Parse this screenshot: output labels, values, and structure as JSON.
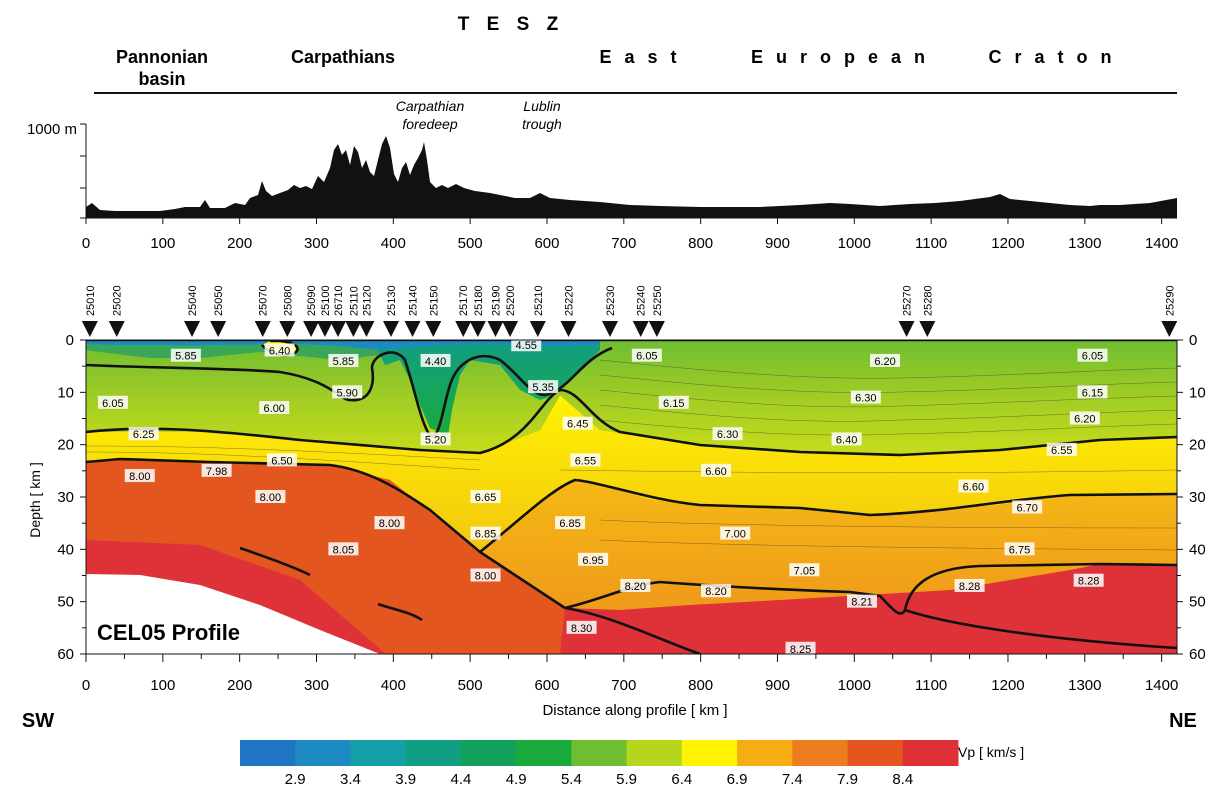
{
  "header": {
    "tesz": "T E S Z",
    "regions": [
      {
        "label": "Pannonian",
        "label2": "basin"
      },
      {
        "label": "Carpathians"
      },
      {
        "label": "E a s t"
      },
      {
        "label": "E u r o p e a n"
      },
      {
        "label": "C r a t o n"
      }
    ],
    "sub_features": [
      {
        "label": "Carpathian",
        "label2": "foredeep"
      },
      {
        "label": "Lublin",
        "label2": "trough"
      }
    ]
  },
  "topography": {
    "elevation_label": "1000 m",
    "x_ticks": [
      "0",
      "100",
      "200",
      "300",
      "400",
      "500",
      "600",
      "700",
      "800",
      "900",
      "1000",
      "1100",
      "1200",
      "1300",
      "1400"
    ]
  },
  "section": {
    "profile_name": "CEL05 Profile",
    "y_axis_label": "Depth [ km ]",
    "x_axis_label": "Distance along profile  [ km ]",
    "left_end": "SW",
    "right_end": "NE",
    "depth_ticks": [
      "0",
      "10",
      "20",
      "30",
      "40",
      "50",
      "60"
    ],
    "x_ticks": [
      "0",
      "100",
      "200",
      "300",
      "400",
      "500",
      "600",
      "700",
      "800",
      "900",
      "1000",
      "1100",
      "1200",
      "1300",
      "1400"
    ],
    "stations": [
      {
        "id": "25010",
        "km": 5
      },
      {
        "id": "25020",
        "km": 40
      },
      {
        "id": "25040",
        "km": 138
      },
      {
        "id": "25050",
        "km": 172
      },
      {
        "id": "25070",
        "km": 230
      },
      {
        "id": "25080",
        "km": 262
      },
      {
        "id": "25090",
        "km": 293
      },
      {
        "id": "25100",
        "km": 311
      },
      {
        "id": "26710",
        "km": 328
      },
      {
        "id": "25110",
        "km": 348
      },
      {
        "id": "25120",
        "km": 365
      },
      {
        "id": "25130",
        "km": 397
      },
      {
        "id": "25140",
        "km": 425
      },
      {
        "id": "25150",
        "km": 452
      },
      {
        "id": "25170",
        "km": 491
      },
      {
        "id": "25180",
        "km": 510
      },
      {
        "id": "25190",
        "km": 533
      },
      {
        "id": "25200",
        "km": 552
      },
      {
        "id": "25210",
        "km": 588
      },
      {
        "id": "25220",
        "km": 628
      },
      {
        "id": "25230",
        "km": 682
      },
      {
        "id": "25240",
        "km": 722
      },
      {
        "id": "25250",
        "km": 743
      },
      {
        "id": "25270",
        "km": 1068
      },
      {
        "id": "25280",
        "km": 1095
      },
      {
        "id": "25290",
        "km": 1410
      }
    ],
    "velocity_labels": [
      {
        "v": "5.85",
        "km": 130,
        "depth": 3
      },
      {
        "v": "6.40",
        "km": 252,
        "depth": 2
      },
      {
        "v": "5.85",
        "km": 335,
        "depth": 4
      },
      {
        "v": "4.40",
        "km": 455,
        "depth": 4
      },
      {
        "v": "4.55",
        "km": 573,
        "depth": 1
      },
      {
        "v": "6.05",
        "km": 730,
        "depth": 3
      },
      {
        "v": "6.20",
        "km": 1040,
        "depth": 4
      },
      {
        "v": "6.05",
        "km": 1310,
        "depth": 3
      },
      {
        "v": "5.90",
        "km": 340,
        "depth": 10
      },
      {
        "v": "5.35",
        "km": 595,
        "depth": 9
      },
      {
        "v": "6.05",
        "km": 35,
        "depth": 12
      },
      {
        "v": "6.00",
        "km": 245,
        "depth": 13
      },
      {
        "v": "6.15",
        "km": 765,
        "depth": 12
      },
      {
        "v": "6.30",
        "km": 1015,
        "depth": 11
      },
      {
        "v": "6.15",
        "km": 1310,
        "depth": 10
      },
      {
        "v": "5.20",
        "km": 455,
        "depth": 19
      },
      {
        "v": "6.45",
        "km": 640,
        "depth": 16
      },
      {
        "v": "6.20",
        "km": 1300,
        "depth": 15
      },
      {
        "v": "6.30",
        "km": 835,
        "depth": 18
      },
      {
        "v": "6.40",
        "km": 990,
        "depth": 19
      },
      {
        "v": "6.25",
        "km": 75,
        "depth": 18
      },
      {
        "v": "6.55",
        "km": 1270,
        "depth": 21
      },
      {
        "v": "6.50",
        "km": 255,
        "depth": 23
      },
      {
        "v": "6.55",
        "km": 650,
        "depth": 23
      },
      {
        "v": "6.60",
        "km": 820,
        "depth": 25
      },
      {
        "v": "8.00",
        "km": 70,
        "depth": 26
      },
      {
        "v": "7.98",
        "km": 170,
        "depth": 25
      },
      {
        "v": "6.60",
        "km": 1155,
        "depth": 28
      },
      {
        "v": "8.00",
        "km": 240,
        "depth": 30
      },
      {
        "v": "6.65",
        "km": 520,
        "depth": 30
      },
      {
        "v": "6.70",
        "km": 1225,
        "depth": 32
      },
      {
        "v": "8.00",
        "km": 395,
        "depth": 35
      },
      {
        "v": "6.85",
        "km": 520,
        "depth": 37
      },
      {
        "v": "6.85",
        "km": 630,
        "depth": 35
      },
      {
        "v": "7.00",
        "km": 845,
        "depth": 37
      },
      {
        "v": "8.05",
        "km": 335,
        "depth": 40
      },
      {
        "v": "6.95",
        "km": 660,
        "depth": 42
      },
      {
        "v": "6.75",
        "km": 1215,
        "depth": 40
      },
      {
        "v": "8.00",
        "km": 520,
        "depth": 45
      },
      {
        "v": "7.05",
        "km": 935,
        "depth": 44
      },
      {
        "v": "8.20",
        "km": 715,
        "depth": 47
      },
      {
        "v": "8.20",
        "km": 820,
        "depth": 48
      },
      {
        "v": "8.28",
        "km": 1150,
        "depth": 47
      },
      {
        "v": "8.28",
        "km": 1305,
        "depth": 46
      },
      {
        "v": "8.21",
        "km": 1010,
        "depth": 50
      },
      {
        "v": "8.30",
        "km": 645,
        "depth": 55
      },
      {
        "v": "8.25",
        "km": 930,
        "depth": 59
      }
    ]
  },
  "colorbar": {
    "label": "Vp  [ km/s ]",
    "ticks": [
      "2.9",
      "3.4",
      "3.9",
      "4.4",
      "4.9",
      "5.4",
      "5.9",
      "6.4",
      "6.9",
      "7.4",
      "7.9",
      "8.4"
    ],
    "colors": [
      "#1f77c4",
      "#1d8ac4",
      "#14a0a8",
      "#119e84",
      "#11a15b",
      "#1aaa3c",
      "#6fbd32",
      "#b6d61e",
      "#fff203",
      "#f5ad12",
      "#ee7d1f",
      "#e4561f",
      "#df3238"
    ]
  }
}
